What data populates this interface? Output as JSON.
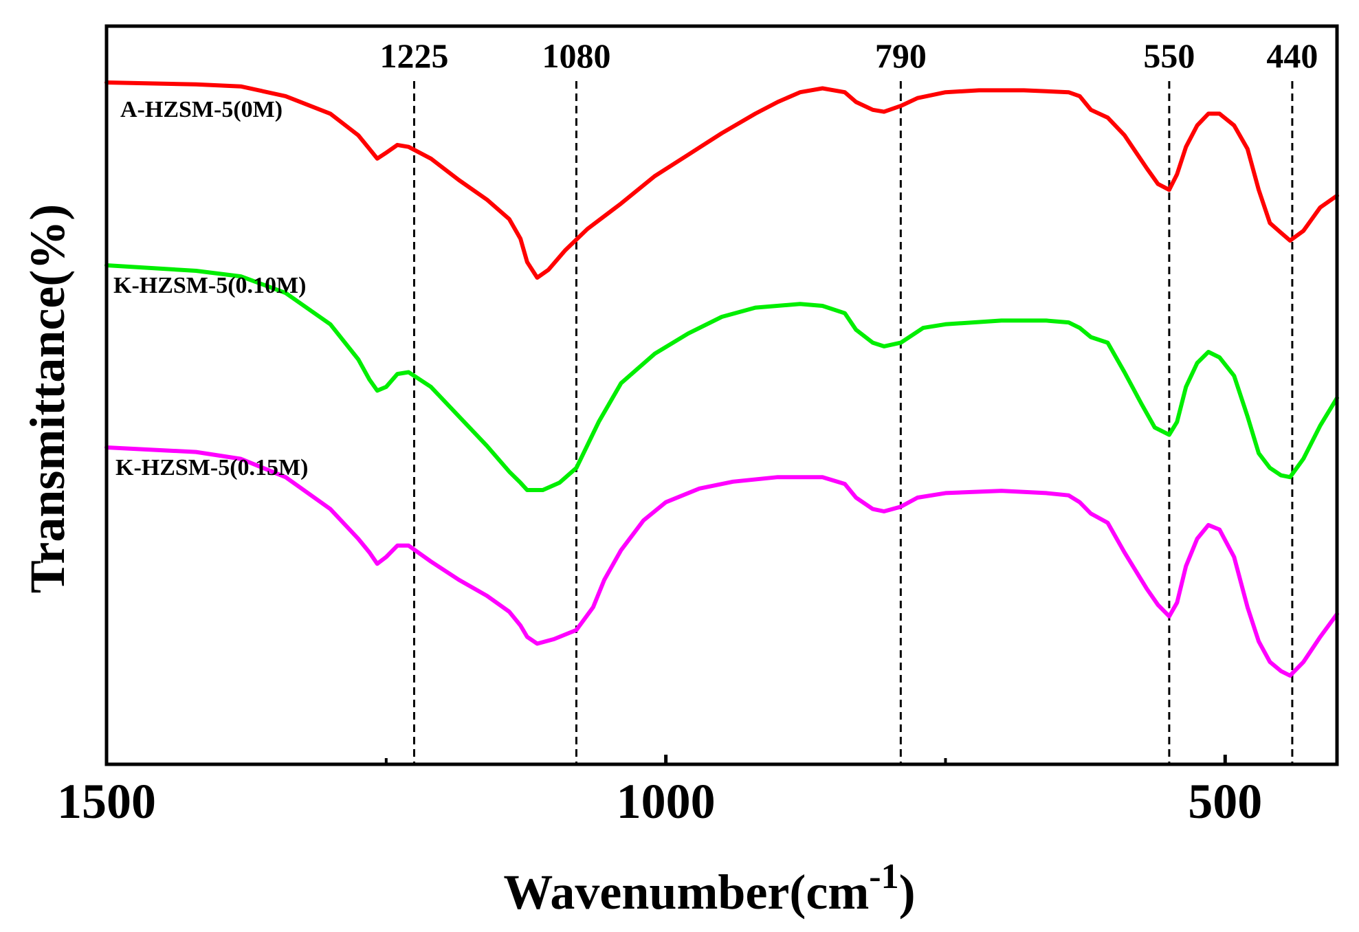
{
  "chart_data": {
    "type": "line",
    "title": "",
    "xlabel": "Wavenumber(cm",
    "xlabel_sup": "-1",
    "xlabel_close": ")",
    "ylabel": "Transmittance(%)",
    "xlim": [
      1500,
      400
    ],
    "x_ticks": [
      1500,
      1000,
      500
    ],
    "x_tick_labels": [
      "1500",
      "1000",
      "500"
    ],
    "peak_markers": [
      {
        "x": 1225,
        "label": "1225"
      },
      {
        "x": 1080,
        "label": "1080"
      },
      {
        "x": 790,
        "label": "790"
      },
      {
        "x": 550,
        "label": "550"
      },
      {
        "x": 440,
        "label": "440"
      }
    ],
    "series": [
      {
        "name": "A-HZSM-5(0M)",
        "color": "#ff0000",
        "points": [
          [
            1500,
            100
          ],
          [
            1420,
            99
          ],
          [
            1380,
            98
          ],
          [
            1340,
            93
          ],
          [
            1300,
            84
          ],
          [
            1275,
            73
          ],
          [
            1265,
            66
          ],
          [
            1258,
            61
          ],
          [
            1250,
            64
          ],
          [
            1240,
            68
          ],
          [
            1230,
            67
          ],
          [
            1210,
            61
          ],
          [
            1185,
            50
          ],
          [
            1160,
            40
          ],
          [
            1140,
            30
          ],
          [
            1130,
            20
          ],
          [
            1124,
            8
          ],
          [
            1115,
            0
          ],
          [
            1105,
            4
          ],
          [
            1090,
            14
          ],
          [
            1070,
            25
          ],
          [
            1040,
            38
          ],
          [
            1010,
            52
          ],
          [
            980,
            63
          ],
          [
            950,
            74
          ],
          [
            920,
            84
          ],
          [
            900,
            90
          ],
          [
            880,
            95
          ],
          [
            860,
            97
          ],
          [
            840,
            95
          ],
          [
            830,
            90
          ],
          [
            815,
            86
          ],
          [
            805,
            85
          ],
          [
            790,
            88
          ],
          [
            775,
            92
          ],
          [
            750,
            95
          ],
          [
            720,
            96
          ],
          [
            680,
            96
          ],
          [
            640,
            95
          ],
          [
            630,
            93
          ],
          [
            620,
            86
          ],
          [
            605,
            82
          ],
          [
            590,
            73
          ],
          [
            570,
            56
          ],
          [
            560,
            48
          ],
          [
            550,
            45
          ],
          [
            543,
            53
          ],
          [
            535,
            67
          ],
          [
            525,
            78
          ],
          [
            515,
            84
          ],
          [
            505,
            84
          ],
          [
            492,
            78
          ],
          [
            480,
            66
          ],
          [
            470,
            45
          ],
          [
            460,
            28
          ],
          [
            450,
            23
          ],
          [
            442,
            19
          ],
          [
            430,
            24
          ],
          [
            415,
            36
          ],
          [
            400,
            42
          ]
        ]
      },
      {
        "name": "K-HZSM-5(0.10M)",
        "color": "#00ee00",
        "points": [
          [
            1500,
            100
          ],
          [
            1420,
            97
          ],
          [
            1380,
            94
          ],
          [
            1340,
            85
          ],
          [
            1300,
            68
          ],
          [
            1275,
            49
          ],
          [
            1265,
            38
          ],
          [
            1258,
            32
          ],
          [
            1250,
            34
          ],
          [
            1240,
            41
          ],
          [
            1230,
            42
          ],
          [
            1210,
            34
          ],
          [
            1185,
            18
          ],
          [
            1160,
            2
          ],
          [
            1140,
            -12
          ],
          [
            1130,
            -18
          ],
          [
            1124,
            -22
          ],
          [
            1110,
            -22
          ],
          [
            1095,
            -18
          ],
          [
            1080,
            -10
          ],
          [
            1060,
            15
          ],
          [
            1040,
            36
          ],
          [
            1010,
            52
          ],
          [
            980,
            63
          ],
          [
            950,
            72
          ],
          [
            920,
            77
          ],
          [
            880,
            79
          ],
          [
            860,
            78
          ],
          [
            840,
            74
          ],
          [
            830,
            65
          ],
          [
            815,
            58
          ],
          [
            805,
            56
          ],
          [
            790,
            58
          ],
          [
            770,
            66
          ],
          [
            750,
            68
          ],
          [
            700,
            70
          ],
          [
            660,
            70
          ],
          [
            640,
            69
          ],
          [
            630,
            66
          ],
          [
            620,
            61
          ],
          [
            605,
            58
          ],
          [
            590,
            42
          ],
          [
            575,
            25
          ],
          [
            563,
            12
          ],
          [
            550,
            8
          ],
          [
            543,
            15
          ],
          [
            535,
            34
          ],
          [
            525,
            47
          ],
          [
            515,
            53
          ],
          [
            505,
            50
          ],
          [
            492,
            40
          ],
          [
            480,
            18
          ],
          [
            470,
            -2
          ],
          [
            460,
            -10
          ],
          [
            450,
            -14
          ],
          [
            442,
            -15
          ],
          [
            430,
            -5
          ],
          [
            415,
            13
          ],
          [
            400,
            28
          ]
        ]
      },
      {
        "name": "K-HZSM-5(0.15M)",
        "color": "#ff00ff",
        "points": [
          [
            1500,
            100
          ],
          [
            1420,
            98
          ],
          [
            1380,
            95
          ],
          [
            1340,
            87
          ],
          [
            1300,
            73
          ],
          [
            1275,
            60
          ],
          [
            1265,
            54
          ],
          [
            1258,
            49
          ],
          [
            1250,
            52
          ],
          [
            1240,
            57
          ],
          [
            1230,
            57
          ],
          [
            1210,
            50
          ],
          [
            1185,
            42
          ],
          [
            1160,
            35
          ],
          [
            1140,
            28
          ],
          [
            1130,
            22
          ],
          [
            1124,
            17
          ],
          [
            1115,
            14
          ],
          [
            1100,
            16
          ],
          [
            1080,
            20
          ],
          [
            1065,
            30
          ],
          [
            1055,
            42
          ],
          [
            1040,
            55
          ],
          [
            1020,
            68
          ],
          [
            1000,
            76
          ],
          [
            970,
            82
          ],
          [
            940,
            85
          ],
          [
            900,
            87
          ],
          [
            860,
            87
          ],
          [
            840,
            84
          ],
          [
            830,
            78
          ],
          [
            815,
            73
          ],
          [
            805,
            72
          ],
          [
            790,
            74
          ],
          [
            775,
            78
          ],
          [
            750,
            80
          ],
          [
            700,
            81
          ],
          [
            660,
            80
          ],
          [
            640,
            79
          ],
          [
            630,
            76
          ],
          [
            620,
            71
          ],
          [
            605,
            67
          ],
          [
            590,
            54
          ],
          [
            570,
            38
          ],
          [
            560,
            31
          ],
          [
            550,
            26
          ],
          [
            543,
            32
          ],
          [
            535,
            48
          ],
          [
            525,
            60
          ],
          [
            515,
            66
          ],
          [
            505,
            64
          ],
          [
            492,
            52
          ],
          [
            480,
            30
          ],
          [
            470,
            15
          ],
          [
            460,
            6
          ],
          [
            450,
            2
          ],
          [
            442,
            0
          ],
          [
            430,
            6
          ],
          [
            415,
            17
          ],
          [
            400,
            27
          ]
        ]
      }
    ]
  }
}
